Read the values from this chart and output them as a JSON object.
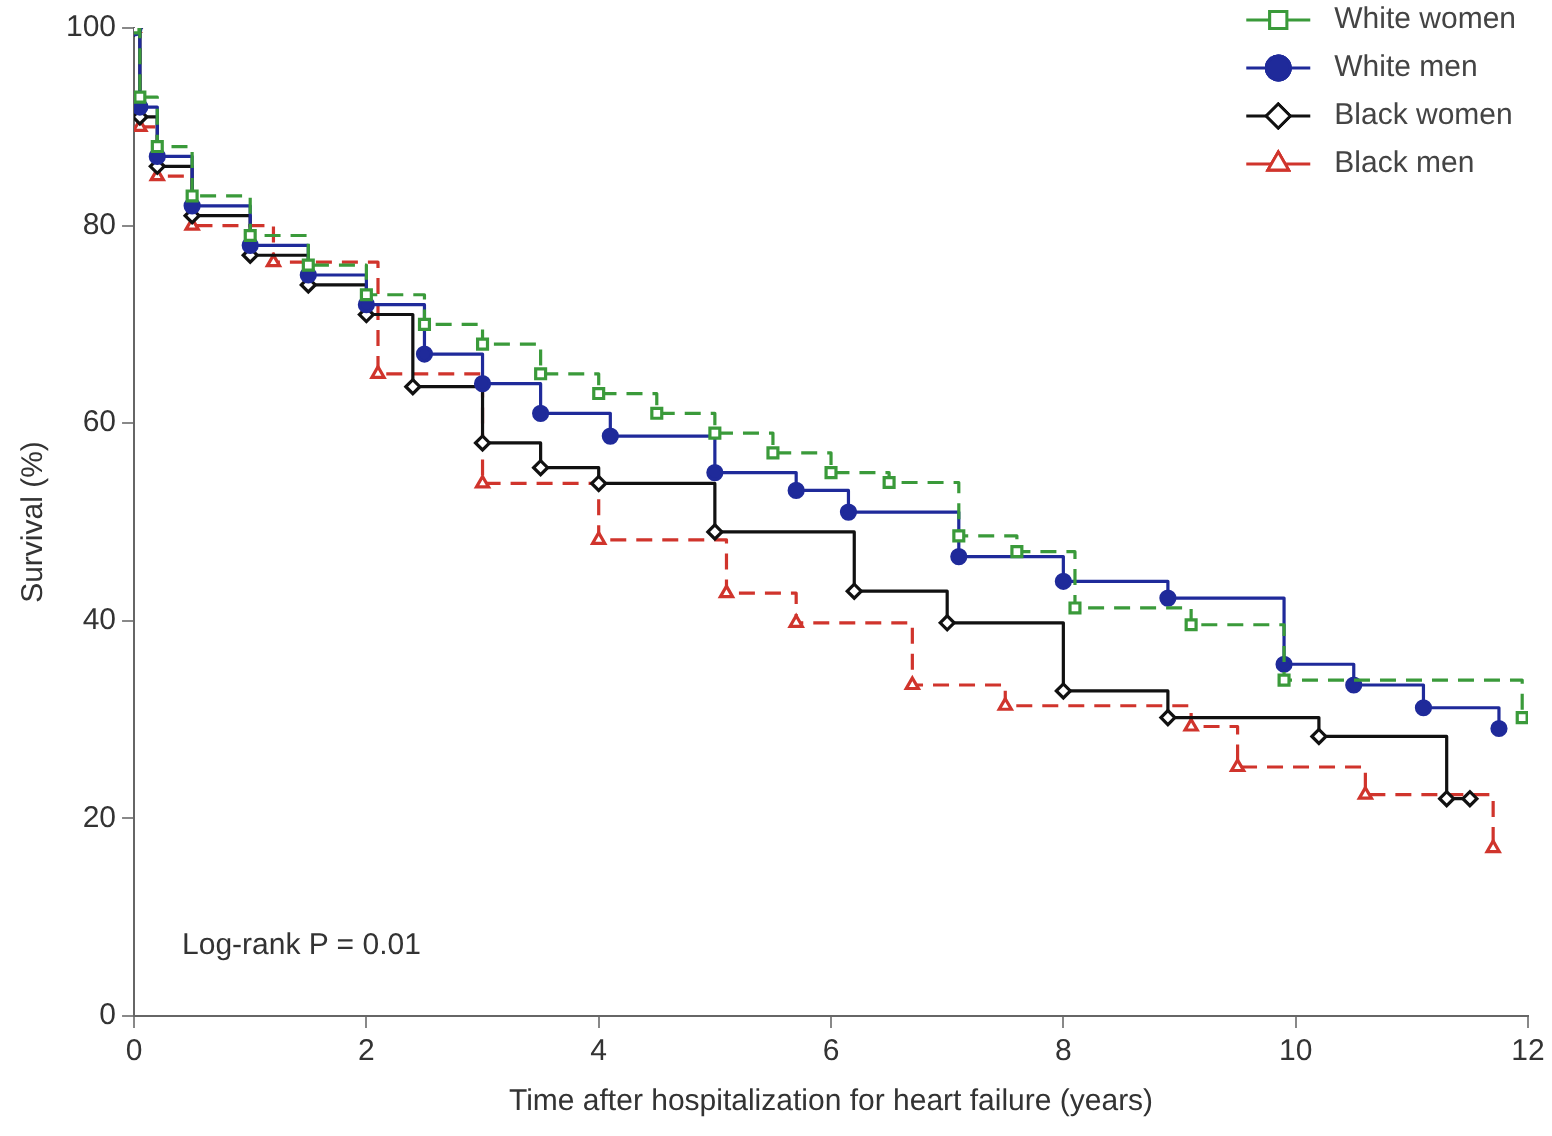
{
  "chart_data": {
    "type": "step",
    "xlabel": "Time after hospitalization for heart failure (years)",
    "ylabel": "Survival (%)",
    "xlim": [
      0,
      12
    ],
    "ylim": [
      0,
      100
    ],
    "xticks": [
      0,
      2,
      4,
      6,
      8,
      10,
      12
    ],
    "yticks": [
      0,
      20,
      40,
      60,
      80,
      100
    ],
    "grid": false,
    "legend": "top right",
    "annotations": [
      "Log-rank P = 0.01"
    ],
    "series": [
      {
        "name": "White women",
        "color": "#3a9a3a",
        "marker": "square",
        "line_style": "dashed",
        "x": [
          0,
          0.05,
          0.2,
          0.5,
          1,
          1.5,
          2,
          2.5,
          3,
          3.5,
          4,
          4.5,
          5,
          5.5,
          6,
          6.5,
          7.1,
          7.6,
          8.1,
          9.1,
          9.9,
          11.95
        ],
        "values": [
          100,
          93,
          88,
          83,
          79,
          76,
          73,
          70,
          68,
          65,
          63,
          61,
          59,
          57,
          55,
          54,
          48.6,
          47,
          41.3,
          39.6,
          34,
          30.2
        ]
      },
      {
        "name": "White men",
        "color": "#1f2a9a",
        "marker": "circle",
        "line_style": "solid",
        "x": [
          0,
          0.05,
          0.2,
          0.5,
          1,
          1.5,
          2,
          2.5,
          3,
          3.5,
          4.1,
          5,
          5.7,
          6.15,
          7.1,
          8,
          8.9,
          9.9,
          10.5,
          11.1,
          11.75
        ],
        "values": [
          100,
          92,
          87,
          82,
          78,
          75,
          72,
          67,
          64,
          61,
          58.7,
          55,
          53.2,
          51,
          46.5,
          44,
          42.3,
          35.6,
          33.5,
          31.2,
          29.1
        ]
      },
      {
        "name": "Black women",
        "color": "#111111",
        "marker": "diamond",
        "line_style": "solid",
        "x": [
          0,
          0.05,
          0.2,
          0.5,
          1,
          1.5,
          2,
          2.4,
          3,
          3.5,
          4,
          5,
          6.2,
          7,
          8,
          8.9,
          10.2,
          11.3,
          11.5
        ],
        "values": [
          100,
          91,
          86,
          81,
          77,
          74,
          71,
          63.7,
          58,
          55.5,
          53.9,
          49,
          43,
          39.8,
          32.9,
          30.2,
          28.3,
          22,
          22
        ]
      },
      {
        "name": "Black men",
        "color": "#d0342c",
        "marker": "triangle",
        "line_style": "dashed",
        "x": [
          0,
          0.05,
          0.2,
          0.5,
          1.2,
          2.1,
          3,
          4,
          5.1,
          5.7,
          6.7,
          7.5,
          9.1,
          9.5,
          10.6,
          11.7
        ],
        "values": [
          100,
          90,
          85,
          80,
          76.3,
          65,
          53.9,
          48.2,
          42.8,
          39.8,
          33.5,
          31.4,
          29.3,
          25.2,
          22.4,
          17
        ]
      }
    ]
  }
}
